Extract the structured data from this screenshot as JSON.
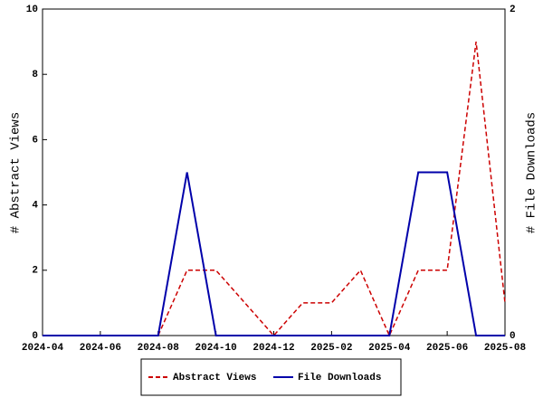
{
  "chart_data": {
    "type": "line",
    "y_label": "# Abstract Views",
    "y2_label": "# File Downloads",
    "x": [
      "2024-04",
      "2024-05",
      "2024-06",
      "2024-07",
      "2024-08",
      "2024-09",
      "2024-10",
      "2024-11",
      "2024-12",
      "2025-01",
      "2025-02",
      "2025-03",
      "2025-04",
      "2025-05",
      "2025-06",
      "2025-07",
      "2025-08"
    ],
    "xlim": [
      "2024-04",
      "2025-08"
    ],
    "xticks": [
      "2024-04",
      "2024-06",
      "2024-08",
      "2024-10",
      "2024-12",
      "2025-02",
      "2025-04",
      "2025-06",
      "2025-08"
    ],
    "ylim": [
      0,
      10
    ],
    "yticks": [
      0,
      2,
      4,
      6,
      8,
      10
    ],
    "y2lim": [
      0,
      2
    ],
    "y2ticks": [
      0,
      2
    ],
    "series": [
      {
        "name": "Abstract Views",
        "color": "#cc0000",
        "dashed": true,
        "values": [
          0,
          0,
          0,
          0,
          0,
          2,
          2,
          1,
          0,
          1,
          1,
          2,
          0,
          2,
          2,
          9,
          1
        ]
      },
      {
        "name": "File Downloads",
        "color": "#0000aa",
        "dashed": false,
        "axis": "y2",
        "values": [
          0,
          0,
          0,
          0,
          0,
          1,
          0,
          0,
          0,
          0,
          0,
          0,
          0,
          1,
          1,
          0,
          0
        ]
      }
    ]
  }
}
